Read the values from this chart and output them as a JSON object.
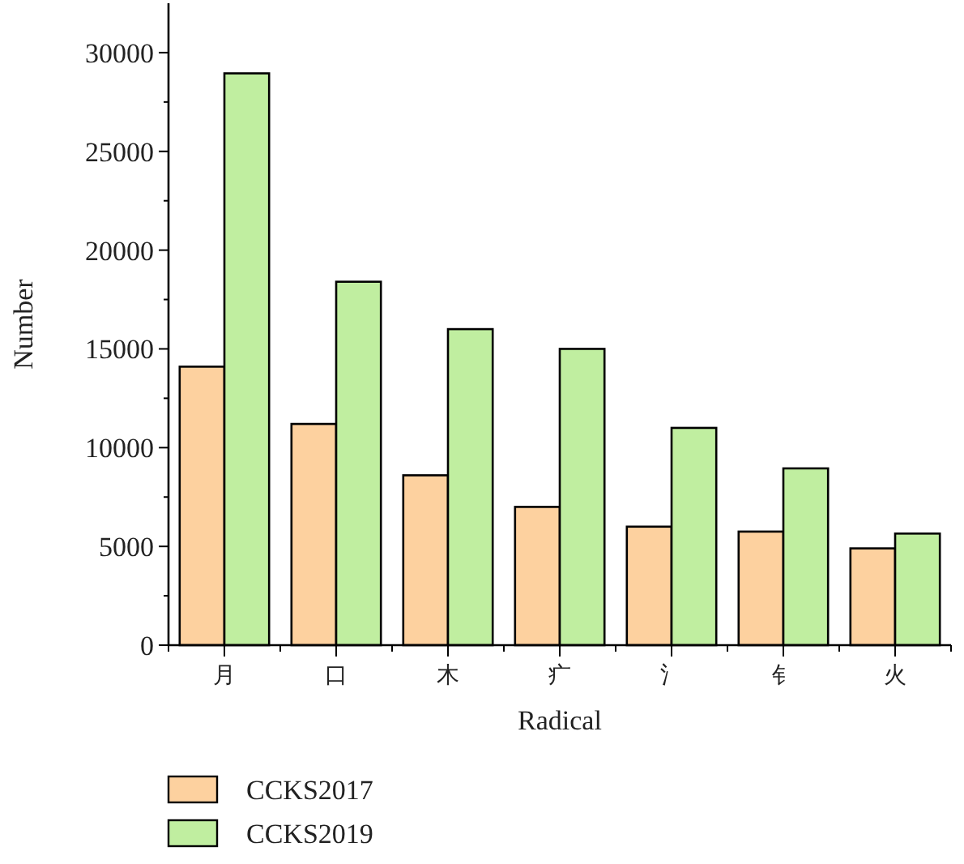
{
  "chart_data": {
    "type": "bar",
    "xlabel": "Radical",
    "ylabel": "Number",
    "categories": [
      "月",
      "口",
      "木",
      "疒",
      "氵",
      "钅",
      "火"
    ],
    "series": [
      {
        "name": "CCKS2017",
        "color": "#fdd19f",
        "values": [
          14100,
          11200,
          8600,
          7000,
          6000,
          5750,
          4900
        ]
      },
      {
        "name": "CCKS2019",
        "color": "#c0eea0",
        "values": [
          28950,
          18400,
          16000,
          15000,
          11000,
          8950,
          5650
        ]
      }
    ],
    "ylim": [
      0,
      32500
    ],
    "yticks": [
      0,
      {
        "value": 2500,
        "label": null
      },
      5000,
      {
        "value": 7500,
        "label": null
      },
      10000,
      {
        "value": 12500,
        "label": null
      },
      15000,
      {
        "value": 17500,
        "label": null
      },
      20000,
      {
        "value": 22500,
        "label": null
      },
      25000,
      {
        "value": 27500,
        "label": null
      },
      30000
    ],
    "grid": false,
    "legend": "bottom"
  }
}
